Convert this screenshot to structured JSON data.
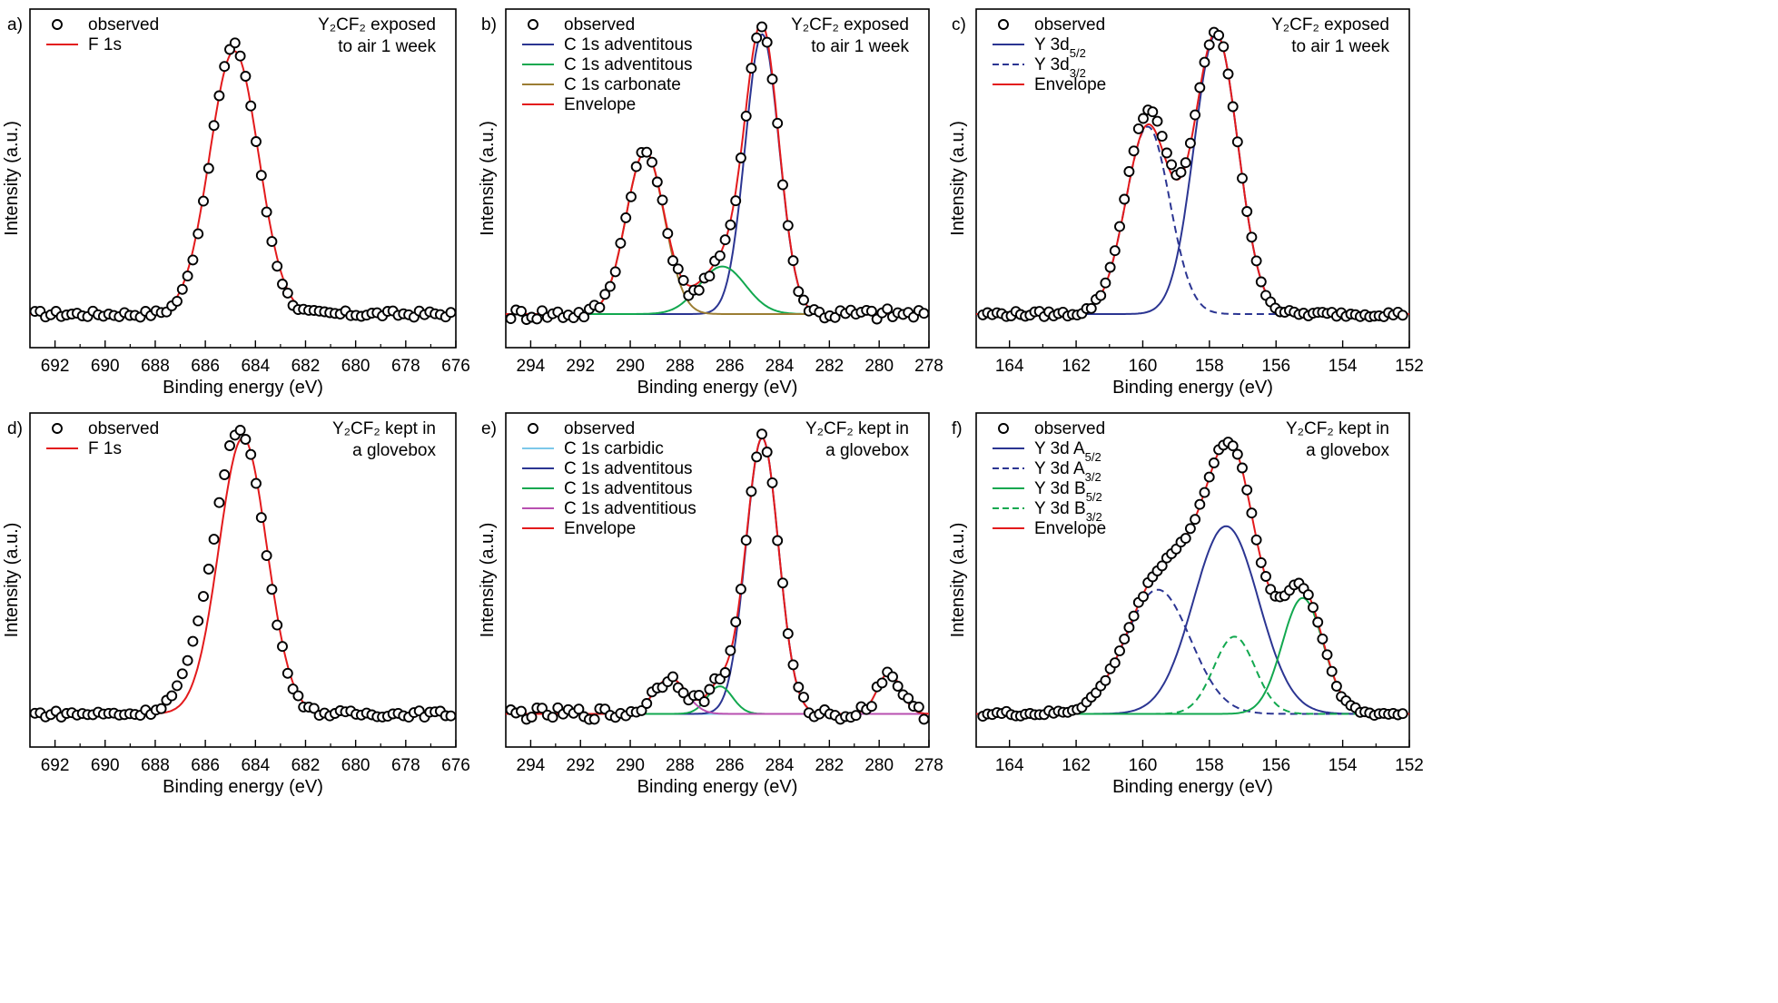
{
  "figure": {
    "panels": [
      {
        "letter": "a)",
        "annotation": [
          "Y₂CF₂ exposed",
          "to air 1 week"
        ]
      },
      {
        "letter": "b)",
        "annotation": [
          "Y₂CF₂ exposed",
          "to air 1 week"
        ]
      },
      {
        "letter": "c)",
        "annotation": [
          "Y₂CF₂ exposed",
          "to air 1 week"
        ]
      },
      {
        "letter": "d)",
        "annotation": [
          "Y₂CF₂ kept in",
          "a glovebox"
        ]
      },
      {
        "letter": "e)",
        "annotation": [
          "Y₂CF₂ kept in",
          "a glovebox"
        ]
      },
      {
        "letter": "f)",
        "annotation": [
          "Y₂CF₂ kept in",
          "a glovebox"
        ]
      }
    ]
  },
  "chart_data": [
    {
      "type": "line",
      "panel": "a)",
      "title": "Y₂CF₂ exposed to air 1 week — F 1s",
      "xlabel": "Binding energy (eV)",
      "ylabel": "Intensity (a.u.)",
      "xlim": [
        693,
        676
      ],
      "ylim": [
        -0.12,
        1.09
      ],
      "xticks": [
        692,
        690,
        688,
        686,
        684,
        682,
        680,
        678,
        676
      ],
      "observed": {
        "name": "observed",
        "x_range": [
          692.8,
          676.2
        ],
        "n_points": 80,
        "peaks": [
          {
            "center": 684.85,
            "height": 0.96,
            "fwhm": 2.2
          }
        ],
        "noise": 0.012
      },
      "series": [
        {
          "name": "F 1s",
          "color": "#e31a1c",
          "dash": false,
          "peaks": [
            {
              "center": 684.85,
              "height": 0.94,
              "fwhm": 2.3
            }
          ]
        }
      ]
    },
    {
      "type": "line",
      "panel": "b)",
      "title": "Y₂CF₂ exposed to air 1 week — C 1s",
      "xlabel": "Binding energy (eV)",
      "ylabel": "Intensity (a.u.)",
      "xlim": [
        295,
        278
      ],
      "ylim": [
        -0.12,
        1.09
      ],
      "xticks": [
        294,
        292,
        290,
        288,
        286,
        284,
        282,
        280,
        278
      ],
      "observed": {
        "name": "observed",
        "x_range": [
          294.8,
          278.2
        ],
        "n_points": 80,
        "peaks": [
          {
            "center": 284.7,
            "height": 1.0,
            "fwhm": 1.6
          },
          {
            "center": 289.4,
            "height": 0.58,
            "fwhm": 1.8
          },
          {
            "center": 286.3,
            "height": 0.16,
            "fwhm": 2.0
          }
        ],
        "noise": 0.022
      },
      "series": [
        {
          "name": "C 1s adventitous",
          "color": "#2b3592",
          "dash": false,
          "peaks": [
            {
              "center": 284.7,
              "height": 1.0,
              "fwhm": 1.6
            }
          ]
        },
        {
          "name": "C 1s adventitous",
          "color": "#12a84f",
          "dash": false,
          "peaks": [
            {
              "center": 286.3,
              "height": 0.17,
              "fwhm": 2.2
            }
          ]
        },
        {
          "name": "C 1s carbonate",
          "color": "#9b7d33",
          "dash": false,
          "peaks": [
            {
              "center": 289.4,
              "height": 0.58,
              "fwhm": 1.8
            }
          ]
        },
        {
          "name": "Envelope",
          "color": "#e31a1c",
          "dash": false,
          "peaks": [
            {
              "center": 284.7,
              "height": 1.0,
              "fwhm": 1.6
            },
            {
              "center": 286.3,
              "height": 0.17,
              "fwhm": 2.2
            },
            {
              "center": 289.4,
              "height": 0.58,
              "fwhm": 1.8
            }
          ]
        }
      ]
    },
    {
      "type": "line",
      "panel": "c)",
      "title": "Y₂CF₂ exposed to air 1 week — Y 3d",
      "xlabel": "Binding energy (eV)",
      "ylabel": "Intensity (a.u.)",
      "xlim": [
        165,
        152
      ],
      "ylim": [
        -0.12,
        1.09
      ],
      "xticks": [
        164,
        162,
        160,
        158,
        156,
        154,
        152
      ],
      "observed": {
        "name": "observed",
        "x_range": [
          164.8,
          152.2
        ],
        "n_points": 90,
        "peaks": [
          {
            "center": 157.8,
            "height": 1.0,
            "fwhm": 1.55
          },
          {
            "center": 159.85,
            "height": 0.72,
            "fwhm": 1.55
          }
        ],
        "noise": 0.01
      },
      "series": [
        {
          "name": "Y 3d",
          "sub": "5/2",
          "color": "#2b3592",
          "dash": false,
          "peaks": [
            {
              "center": 157.8,
              "height": 1.0,
              "fwhm": 1.55
            }
          ]
        },
        {
          "name": "Y 3d",
          "sub": "3/2",
          "color": "#2b3592",
          "dash": true,
          "peaks": [
            {
              "center": 159.85,
              "height": 0.67,
              "fwhm": 1.55
            }
          ]
        },
        {
          "name": "Envelope",
          "color": "#e31a1c",
          "dash": false,
          "peaks": [
            {
              "center": 157.8,
              "height": 1.0,
              "fwhm": 1.55
            },
            {
              "center": 159.85,
              "height": 0.67,
              "fwhm": 1.55
            }
          ]
        }
      ]
    },
    {
      "type": "line",
      "panel": "d)",
      "title": "Y₂CF₂ kept in a glovebox — F 1s",
      "xlabel": "Binding energy (eV)",
      "ylabel": "Intensity (a.u.)",
      "xlim": [
        693,
        676
      ],
      "ylim": [
        -0.12,
        1.09
      ],
      "xticks": [
        692,
        690,
        688,
        686,
        684,
        682,
        680,
        678,
        676
      ],
      "observed": {
        "name": "observed",
        "x_range": [
          692.8,
          676.2
        ],
        "n_points": 80,
        "peaks": [
          {
            "center": 684.6,
            "height": 1.02,
            "fwhm": 2.3
          },
          {
            "center": 686.3,
            "height": 0.1,
            "fwhm": 2.0
          }
        ],
        "noise": 0.012
      },
      "series": [
        {
          "name": "F 1s",
          "color": "#e31a1c",
          "dash": false,
          "peaks": [
            {
              "center": 684.5,
              "height": 1.0,
              "fwhm": 2.25
            }
          ]
        }
      ]
    },
    {
      "type": "line",
      "panel": "e)",
      "title": "Y₂CF₂ kept in a glovebox — C 1s",
      "xlabel": "Binding energy (eV)",
      "ylabel": "Intensity (a.u.)",
      "xlim": [
        295,
        278
      ],
      "ylim": [
        -0.12,
        1.09
      ],
      "xticks": [
        294,
        292,
        290,
        288,
        286,
        284,
        282,
        280,
        278
      ],
      "observed": {
        "name": "observed",
        "x_range": [
          294.8,
          278.2
        ],
        "n_points": 80,
        "peaks": [
          {
            "center": 284.7,
            "height": 1.0,
            "fwhm": 1.55
          },
          {
            "center": 288.4,
            "height": 0.13,
            "fwhm": 1.5
          },
          {
            "center": 286.4,
            "height": 0.1,
            "fwhm": 1.2
          },
          {
            "center": 279.6,
            "height": 0.15,
            "fwhm": 1.1
          }
        ],
        "noise": 0.022
      },
      "series": [
        {
          "name": "C 1s carbidic",
          "color": "#7cc8ea",
          "dash": false,
          "peaks": [
            {
              "center": 279.6,
              "height": 0.15,
              "fwhm": 1.1
            }
          ]
        },
        {
          "name": "C 1s adventitous",
          "color": "#2b3592",
          "dash": false,
          "peaks": [
            {
              "center": 284.7,
              "height": 1.0,
              "fwhm": 1.55
            }
          ]
        },
        {
          "name": "C 1s adventitous",
          "color": "#12a84f",
          "dash": false,
          "peaks": [
            {
              "center": 286.4,
              "height": 0.1,
              "fwhm": 1.2
            }
          ]
        },
        {
          "name": "C 1s adventitious",
          "color": "#b84fb0",
          "dash": false,
          "peaks": [
            {
              "center": 288.4,
              "height": 0.13,
              "fwhm": 1.5
            }
          ]
        },
        {
          "name": "Envelope",
          "color": "#e31a1c",
          "dash": false,
          "peaks": [
            {
              "center": 284.7,
              "height": 1.0,
              "fwhm": 1.55
            },
            {
              "center": 286.4,
              "height": 0.1,
              "fwhm": 1.2
            },
            {
              "center": 288.4,
              "height": 0.13,
              "fwhm": 1.5
            },
            {
              "center": 279.6,
              "height": 0.15,
              "fwhm": 1.1
            }
          ]
        }
      ]
    },
    {
      "type": "line",
      "panel": "f)",
      "title": "Y₂CF₂ kept in a glovebox — Y 3d",
      "xlabel": "Binding energy (eV)",
      "ylabel": "Intensity (a.u.)",
      "xlim": [
        165,
        152
      ],
      "ylim": [
        -0.12,
        1.09
      ],
      "xticks": [
        164,
        162,
        160,
        158,
        156,
        154,
        152
      ],
      "observed": {
        "name": "observed",
        "x_range": [
          164.8,
          152.2
        ],
        "n_points": 90,
        "peaks": [
          {
            "center": 157.5,
            "height": 0.68,
            "fwhm": 2.3
          },
          {
            "center": 159.55,
            "height": 0.45,
            "fwhm": 2.3
          },
          {
            "center": 155.2,
            "height": 0.42,
            "fwhm": 1.45
          },
          {
            "center": 157.25,
            "height": 0.28,
            "fwhm": 1.45
          }
        ],
        "noise": 0.01
      },
      "series": [
        {
          "name": "Y 3d A",
          "sub": "5/2",
          "color": "#2b3592",
          "dash": false,
          "peaks": [
            {
              "center": 157.5,
              "height": 0.68,
              "fwhm": 2.3
            }
          ]
        },
        {
          "name": "Y 3d A",
          "sub": "3/2",
          "color": "#2b3592",
          "dash": true,
          "peaks": [
            {
              "center": 159.55,
              "height": 0.45,
              "fwhm": 2.3
            }
          ]
        },
        {
          "name": "Y 3d B",
          "sub": "5/2",
          "color": "#12a84f",
          "dash": false,
          "peaks": [
            {
              "center": 155.2,
              "height": 0.42,
              "fwhm": 1.45
            }
          ]
        },
        {
          "name": "Y 3d B",
          "sub": "3/2",
          "color": "#12a84f",
          "dash": true,
          "peaks": [
            {
              "center": 157.25,
              "height": 0.28,
              "fwhm": 1.45
            }
          ]
        },
        {
          "name": "Envelope",
          "color": "#e31a1c",
          "dash": false,
          "peaks": [
            {
              "center": 157.5,
              "height": 0.68,
              "fwhm": 2.3
            },
            {
              "center": 159.55,
              "height": 0.45,
              "fwhm": 2.3
            },
            {
              "center": 155.2,
              "height": 0.42,
              "fwhm": 1.45
            },
            {
              "center": 157.25,
              "height": 0.28,
              "fwhm": 1.45
            }
          ]
        }
      ]
    }
  ]
}
